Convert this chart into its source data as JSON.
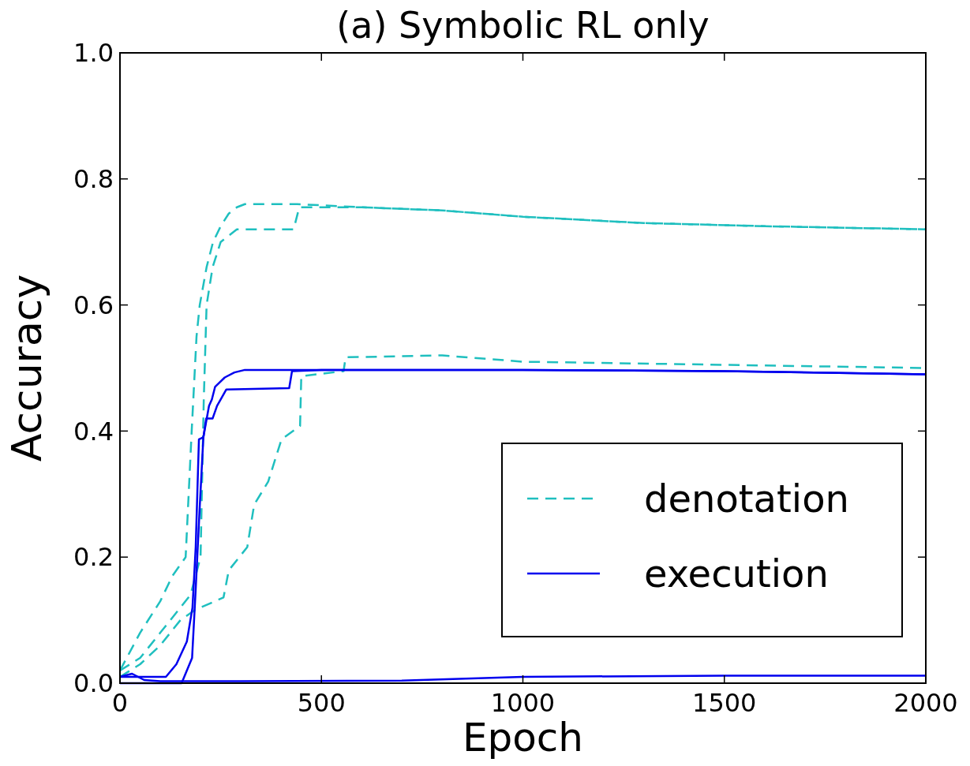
{
  "chart_data": {
    "type": "line",
    "title": "(a) Symbolic RL only",
    "xlabel": "Epoch",
    "ylabel": "Accuracy",
    "xlim": [
      0,
      2000
    ],
    "ylim": [
      0,
      1
    ],
    "xticks": [
      0,
      500,
      1000,
      1500,
      2000
    ],
    "yticks": [
      {
        "value": 0,
        "label": "0.0"
      },
      {
        "value": 0.2,
        "label": "0.2"
      },
      {
        "value": 0.4,
        "label": "0.4"
      },
      {
        "value": 0.6,
        "label": "0.6"
      },
      {
        "value": 0.8,
        "label": "0.8"
      },
      {
        "value": 1,
        "label": "1.0"
      }
    ],
    "grid": false,
    "legend": "bottom right",
    "series": [
      {
        "name": "denotation",
        "color": "#1fbfbf",
        "line_style": "dashed",
        "x": [
          0,
          50,
          100,
          130,
          163,
          178,
          190,
          198,
          215,
          231,
          250,
          270,
          290,
          310,
          440,
          600,
          800,
          1000,
          1300,
          1600,
          2000
        ],
        "values": [
          0.02,
          0.08,
          0.13,
          0.17,
          0.2,
          0.4,
          0.55,
          0.6,
          0.66,
          0.7,
          0.725,
          0.745,
          0.755,
          0.76,
          0.76,
          0.755,
          0.75,
          0.74,
          0.73,
          0.725,
          0.72
        ]
      },
      {
        "color": "#1fbfbf",
        "line_style": "dashed",
        "x": [
          0,
          50,
          100,
          150,
          175,
          200,
          208,
          215,
          230,
          250,
          290,
          431,
          445,
          600,
          800,
          1000,
          1300,
          1600,
          2000
        ],
        "values": [
          0.02,
          0.04,
          0.08,
          0.12,
          0.14,
          0.2,
          0.45,
          0.6,
          0.66,
          0.7,
          0.72,
          0.72,
          0.755,
          0.755,
          0.75,
          0.74,
          0.73,
          0.725,
          0.72
        ]
      },
      {
        "color": "#1fbfbf",
        "line_style": "dashed",
        "x": [
          0,
          50,
          100,
          150,
          186,
          257,
          270,
          316,
          333,
          368,
          401,
          447,
          450,
          555,
          560,
          800,
          1000,
          1500,
          2000
        ],
        "values": [
          0.01,
          0.03,
          0.06,
          0.1,
          0.116,
          0.136,
          0.179,
          0.216,
          0.283,
          0.32,
          0.387,
          0.408,
          0.487,
          0.495,
          0.517,
          0.52,
          0.51,
          0.505,
          0.5
        ]
      },
      {
        "name": "execution",
        "color": "#0000ee",
        "line_style": "solid",
        "x": [
          0,
          100,
          114,
          140,
          166,
          180,
          188,
          196,
          207,
          221,
          228,
          236,
          260,
          284,
          310,
          1000,
          1500,
          2000
        ],
        "values": [
          0.01,
          0.01,
          0.01,
          0.03,
          0.066,
          0.12,
          0.216,
          0.387,
          0.39,
          0.44,
          0.45,
          0.47,
          0.485,
          0.493,
          0.497,
          0.497,
          0.495,
          0.49
        ]
      },
      {
        "color": "#0000ee",
        "line_style": "solid",
        "x": [
          0,
          153,
          179,
          188,
          198,
          207,
          214,
          230,
          241,
          264,
          420,
          427,
          500,
          1000,
          1500,
          2000
        ],
        "values": [
          0,
          0,
          0.04,
          0.15,
          0.28,
          0.39,
          0.42,
          0.42,
          0.44,
          0.466,
          0.468,
          0.495,
          0.497,
          0.497,
          0.495,
          0.49
        ]
      },
      {
        "color": "#0000ee",
        "line_style": "solid",
        "x": [
          0,
          30,
          60,
          100,
          300,
          700,
          1000,
          1500,
          2000
        ],
        "values": [
          0.01,
          0.015,
          0.005,
          0.003,
          0.003,
          0.004,
          0.01,
          0.012,
          0.012
        ]
      }
    ]
  }
}
